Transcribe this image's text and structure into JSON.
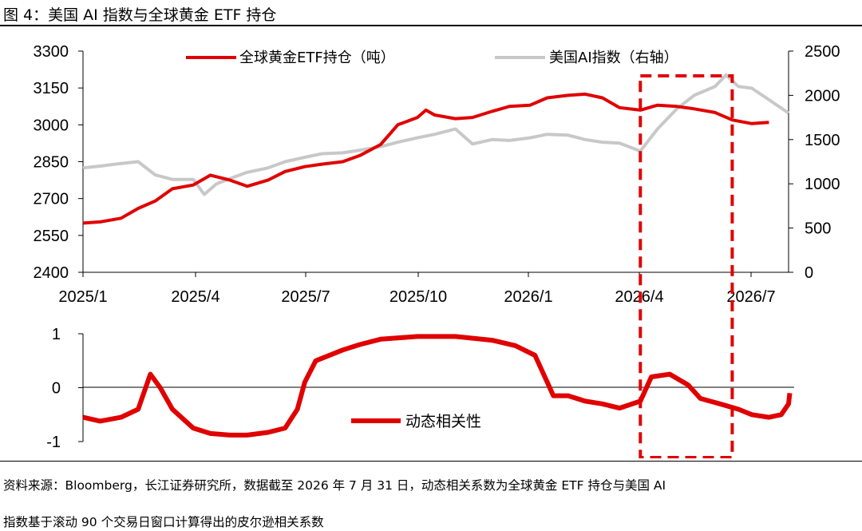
{
  "figure": {
    "title": "图 4：美国 AI 指数与全球黄金 ETF 持仓",
    "source_line1": "资料来源：Bloomberg，长江证券研究所，数据截至 2026 年 7 月 31 日，动态相关系数为全球黄金 ETF 持仓与美国 AI",
    "source_line2": "指数基于滚动 90 个交易日窗口计算得出的皮尔逊相关系数"
  },
  "colors": {
    "gold_etf": "#e00000",
    "ai_index": "#c8c8c8",
    "correlation": "#e00000",
    "highlight_box": "#e00000",
    "axis": "#000000"
  },
  "chart_data": [
    {
      "type": "line",
      "x_ticks": [
        "2025/1",
        "2025/4",
        "2025/7",
        "2025/10",
        "2026/1",
        "2026/4",
        "2026/7"
      ],
      "x_range": [
        "2025-01",
        "2026-07"
      ],
      "ylim_left": [
        2400,
        3300
      ],
      "yticks_left": [
        "3300",
        "3150",
        "3000",
        "2850",
        "2700",
        "2550",
        "2400"
      ],
      "ylim_right": [
        0,
        2500
      ],
      "yticks_right": [
        "2500",
        "2000",
        "1500",
        "1000",
        "500",
        "0"
      ],
      "legend_placement": "top",
      "series": [
        {
          "name": "全球黄金ETF持仓（吨）",
          "axis": "left",
          "color": "#e00000",
          "points": [
            [
              "2025-01-01",
              2600
            ],
            [
              "2025-01-15",
              2605
            ],
            [
              "2025-02-01",
              2620
            ],
            [
              "2025-02-15",
              2660
            ],
            [
              "2025-03-01",
              2690
            ],
            [
              "2025-03-15",
              2740
            ],
            [
              "2025-04-01",
              2755
            ],
            [
              "2025-04-15",
              2795
            ],
            [
              "2025-05-01",
              2775
            ],
            [
              "2025-05-15",
              2750
            ],
            [
              "2025-06-01",
              2775
            ],
            [
              "2025-06-15",
              2810
            ],
            [
              "2025-07-01",
              2830
            ],
            [
              "2025-07-15",
              2840
            ],
            [
              "2025-08-01",
              2850
            ],
            [
              "2025-08-15",
              2875
            ],
            [
              "2025-09-01",
              2920
            ],
            [
              "2025-09-15",
              3000
            ],
            [
              "2025-10-01",
              3030
            ],
            [
              "2025-10-08",
              3060
            ],
            [
              "2025-10-15",
              3040
            ],
            [
              "2025-11-01",
              3025
            ],
            [
              "2025-11-15",
              3030
            ],
            [
              "2025-12-01",
              3055
            ],
            [
              "2025-12-15",
              3075
            ],
            [
              "2026-01-01",
              3080
            ],
            [
              "2026-01-15",
              3110
            ],
            [
              "2026-02-01",
              3120
            ],
            [
              "2026-02-15",
              3125
            ],
            [
              "2026-03-01",
              3110
            ],
            [
              "2026-03-15",
              3070
            ],
            [
              "2026-04-01",
              3060
            ],
            [
              "2026-04-15",
              3080
            ],
            [
              "2026-05-01",
              3075
            ],
            [
              "2026-05-15",
              3065
            ],
            [
              "2026-06-01",
              3050
            ],
            [
              "2026-06-15",
              3020
            ],
            [
              "2026-07-01",
              3005
            ],
            [
              "2026-07-15",
              3010
            ]
          ]
        },
        {
          "name": "美国AI指数（右轴）",
          "axis": "right",
          "color": "#c8c8c8",
          "points": [
            [
              "2025-01-01",
              1180
            ],
            [
              "2025-01-15",
              1200
            ],
            [
              "2025-02-01",
              1230
            ],
            [
              "2025-02-15",
              1250
            ],
            [
              "2025-03-01",
              1100
            ],
            [
              "2025-03-15",
              1050
            ],
            [
              "2025-04-01",
              1050
            ],
            [
              "2025-04-10",
              880
            ],
            [
              "2025-04-20",
              1000
            ],
            [
              "2025-05-01",
              1060
            ],
            [
              "2025-05-15",
              1130
            ],
            [
              "2025-06-01",
              1180
            ],
            [
              "2025-06-15",
              1250
            ],
            [
              "2025-07-01",
              1300
            ],
            [
              "2025-07-15",
              1340
            ],
            [
              "2025-08-01",
              1350
            ],
            [
              "2025-08-15",
              1380
            ],
            [
              "2025-09-01",
              1420
            ],
            [
              "2025-09-15",
              1470
            ],
            [
              "2025-10-01",
              1520
            ],
            [
              "2025-10-15",
              1560
            ],
            [
              "2025-11-01",
              1620
            ],
            [
              "2025-11-15",
              1450
            ],
            [
              "2025-12-01",
              1500
            ],
            [
              "2025-12-15",
              1490
            ],
            [
              "2026-01-01",
              1520
            ],
            [
              "2026-01-15",
              1560
            ],
            [
              "2026-02-01",
              1550
            ],
            [
              "2026-02-15",
              1500
            ],
            [
              "2026-03-01",
              1470
            ],
            [
              "2026-03-15",
              1460
            ],
            [
              "2026-04-01",
              1370
            ],
            [
              "2026-04-15",
              1620
            ],
            [
              "2026-05-01",
              1850
            ],
            [
              "2026-05-15",
              2000
            ],
            [
              "2026-06-01",
              2100
            ],
            [
              "2026-06-10",
              2230
            ],
            [
              "2026-06-20",
              2100
            ],
            [
              "2026-07-01",
              2080
            ],
            [
              "2026-07-15",
              1950
            ],
            [
              "2026-07-31",
              1800
            ]
          ]
        }
      ]
    },
    {
      "type": "line",
      "x_range": [
        "2025-01",
        "2026-07"
      ],
      "ylim": [
        -1,
        1
      ],
      "yticks": [
        "1",
        "0",
        "-1"
      ],
      "legend_placement": "bottom-left",
      "series": [
        {
          "name": "动态相关性",
          "color": "#e00000",
          "points": [
            [
              "2025-01-01",
              -0.55
            ],
            [
              "2025-01-15",
              -0.62
            ],
            [
              "2025-02-01",
              -0.55
            ],
            [
              "2025-02-15",
              -0.4
            ],
            [
              "2025-02-25",
              0.25
            ],
            [
              "2025-03-05",
              0.0
            ],
            [
              "2025-03-15",
              -0.4
            ],
            [
              "2025-04-01",
              -0.75
            ],
            [
              "2025-04-15",
              -0.85
            ],
            [
              "2025-05-01",
              -0.88
            ],
            [
              "2025-05-15",
              -0.88
            ],
            [
              "2025-06-01",
              -0.83
            ],
            [
              "2025-06-15",
              -0.75
            ],
            [
              "2025-06-25",
              -0.4
            ],
            [
              "2025-07-01",
              0.1
            ],
            [
              "2025-07-10",
              0.5
            ],
            [
              "2025-08-01",
              0.7
            ],
            [
              "2025-08-15",
              0.8
            ],
            [
              "2025-09-01",
              0.9
            ],
            [
              "2025-10-01",
              0.95
            ],
            [
              "2025-11-01",
              0.95
            ],
            [
              "2025-12-01",
              0.88
            ],
            [
              "2025-12-20",
              0.78
            ],
            [
              "2026-01-05",
              0.6
            ],
            [
              "2026-01-15",
              0.1
            ],
            [
              "2026-01-20",
              -0.15
            ],
            [
              "2026-02-01",
              -0.15
            ],
            [
              "2026-02-15",
              -0.25
            ],
            [
              "2026-03-01",
              -0.3
            ],
            [
              "2026-03-15",
              -0.38
            ],
            [
              "2026-04-01",
              -0.25
            ],
            [
              "2026-04-10",
              0.2
            ],
            [
              "2026-04-25",
              0.25
            ],
            [
              "2026-05-10",
              0.05
            ],
            [
              "2026-05-20",
              -0.2
            ],
            [
              "2026-06-05",
              -0.3
            ],
            [
              "2026-06-20",
              -0.4
            ],
            [
              "2026-07-01",
              -0.5
            ],
            [
              "2026-07-15",
              -0.55
            ],
            [
              "2026-07-25",
              -0.5
            ],
            [
              "2026-07-31",
              -0.3
            ],
            [
              "2026-08-01",
              -0.1
            ]
          ]
        }
      ]
    }
  ],
  "highlight_box": {
    "start": "2026-04-01",
    "end": "2026-06-15",
    "style": "dashed"
  }
}
